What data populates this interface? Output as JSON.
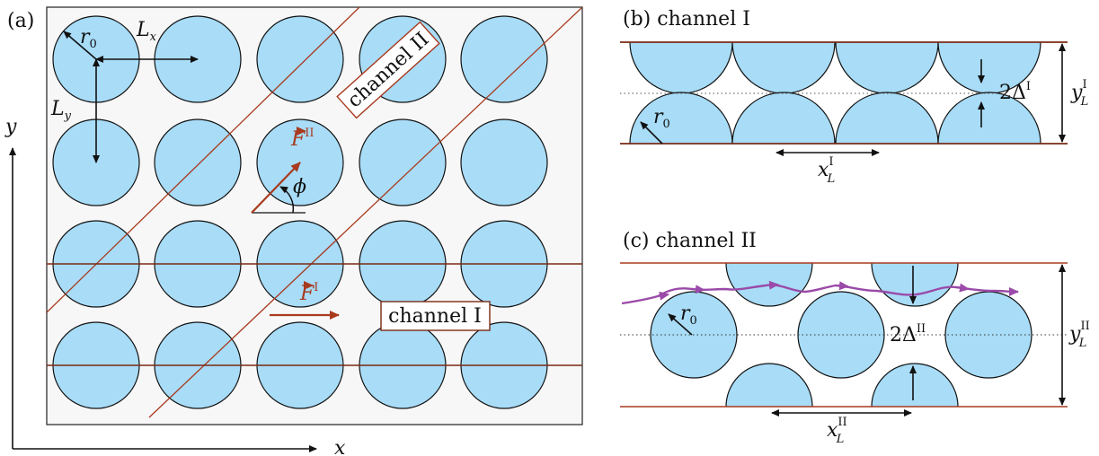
{
  "panel_a": {
    "tag": "(a)",
    "r0_label": "r",
    "r0_sub": "0",
    "lx_label": "L",
    "lx_sub": "x",
    "ly_label": "L",
    "ly_sub": "y",
    "channel_ii_box": "channel II",
    "channel_i_box": "channel I",
    "f_ii_label": "F",
    "f_ii_sup": "II",
    "f_i_label": "F",
    "f_i_sup": "I",
    "phi_label": "ϕ",
    "axis_y": "y",
    "axis_x": "x"
  },
  "panel_b": {
    "title": "(b) channel I",
    "r0_label": "r",
    "r0_sub": "0",
    "delta_label": "2Δ",
    "delta_sup": "I",
    "yl_label": "y",
    "yl_sup": "I",
    "yl_sub": "L",
    "xl_label": "x",
    "xl_sup": "I",
    "xl_sub": "L"
  },
  "panel_c": {
    "title": "(c) channel II",
    "r0_label": "r",
    "r0_sub": "0",
    "delta_label": "2Δ",
    "delta_sup": "II",
    "yl_label": "y",
    "yl_sup": "II",
    "yl_sub": "L",
    "xl_label": "x",
    "xl_sup": "II",
    "xl_sub": "L"
  },
  "colors": {
    "disk": "#a8dcf7",
    "channel_line": "#a83a1e",
    "force_arrow": "#a83a1e",
    "trajectory": "#9a4aa8",
    "panel_bg": "#f7f7f7"
  }
}
